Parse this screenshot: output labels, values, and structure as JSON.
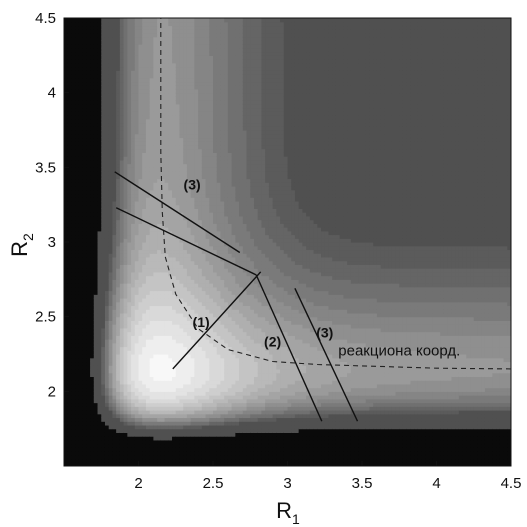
{
  "chart_data": {
    "type": "contour",
    "xlabel": "R",
    "xlabel_sub": "1",
    "ylabel": "R",
    "ylabel_sub": "2",
    "xlim": [
      1.5,
      4.5
    ],
    "ylim": [
      1.5,
      4.5
    ],
    "xticks": [
      "2",
      "2.5",
      "3",
      "3.5",
      "4",
      "4.5"
    ],
    "xtick_values": [
      2,
      2.5,
      3,
      3.5,
      4,
      4.5
    ],
    "yticks": [
      "2",
      "2.5",
      "3",
      "3.5",
      "4",
      "4.5"
    ],
    "ytick_values": [
      2,
      2.5,
      3,
      3.5,
      4,
      4.5
    ],
    "grid": false,
    "legend": "none",
    "reaction_path": [
      [
        4.5,
        2.15
      ],
      [
        4.0,
        2.155
      ],
      [
        3.5,
        2.17
      ],
      [
        3.2,
        2.18
      ],
      [
        2.9,
        2.2
      ],
      [
        2.6,
        2.28
      ],
      [
        2.4,
        2.42
      ],
      [
        2.25,
        2.65
      ],
      [
        2.18,
        2.9
      ],
      [
        2.16,
        3.2
      ],
      [
        2.15,
        3.6
      ],
      [
        2.15,
        4.0
      ],
      [
        2.15,
        4.5
      ]
    ],
    "cut_lines": [
      {
        "label": "(1)",
        "from": [
          2.23,
          2.15
        ],
        "to": [
          2.82,
          2.8
        ],
        "label_at": [
          2.42,
          2.43
        ]
      },
      {
        "label": "(2)",
        "from": [
          2.79,
          2.78
        ],
        "to": [
          3.23,
          1.8
        ],
        "label_at": [
          2.9,
          2.3
        ]
      },
      {
        "label": "(3)",
        "from": [
          3.05,
          2.69
        ],
        "to": [
          3.47,
          1.8
        ],
        "label_at": [
          3.25,
          2.36
        ]
      },
      {
        "label": "(3)",
        "from": [
          1.84,
          3.47
        ],
        "to": [
          2.68,
          2.93
        ],
        "label_at": [
          2.36,
          3.35
        ]
      },
      {
        "label": "(2)",
        "from": [
          1.85,
          3.23
        ],
        "to": [
          2.79,
          2.78
        ],
        "label_at": null
      }
    ],
    "annotations": [
      {
        "text": "реакциона коорд.",
        "at": [
          3.75,
          2.24
        ]
      }
    ],
    "colors": {
      "background": "#ffffff",
      "low": "#f8f8f8",
      "high": "#555555",
      "wall": "#0a0a0a",
      "contour_line": "#222222"
    }
  }
}
